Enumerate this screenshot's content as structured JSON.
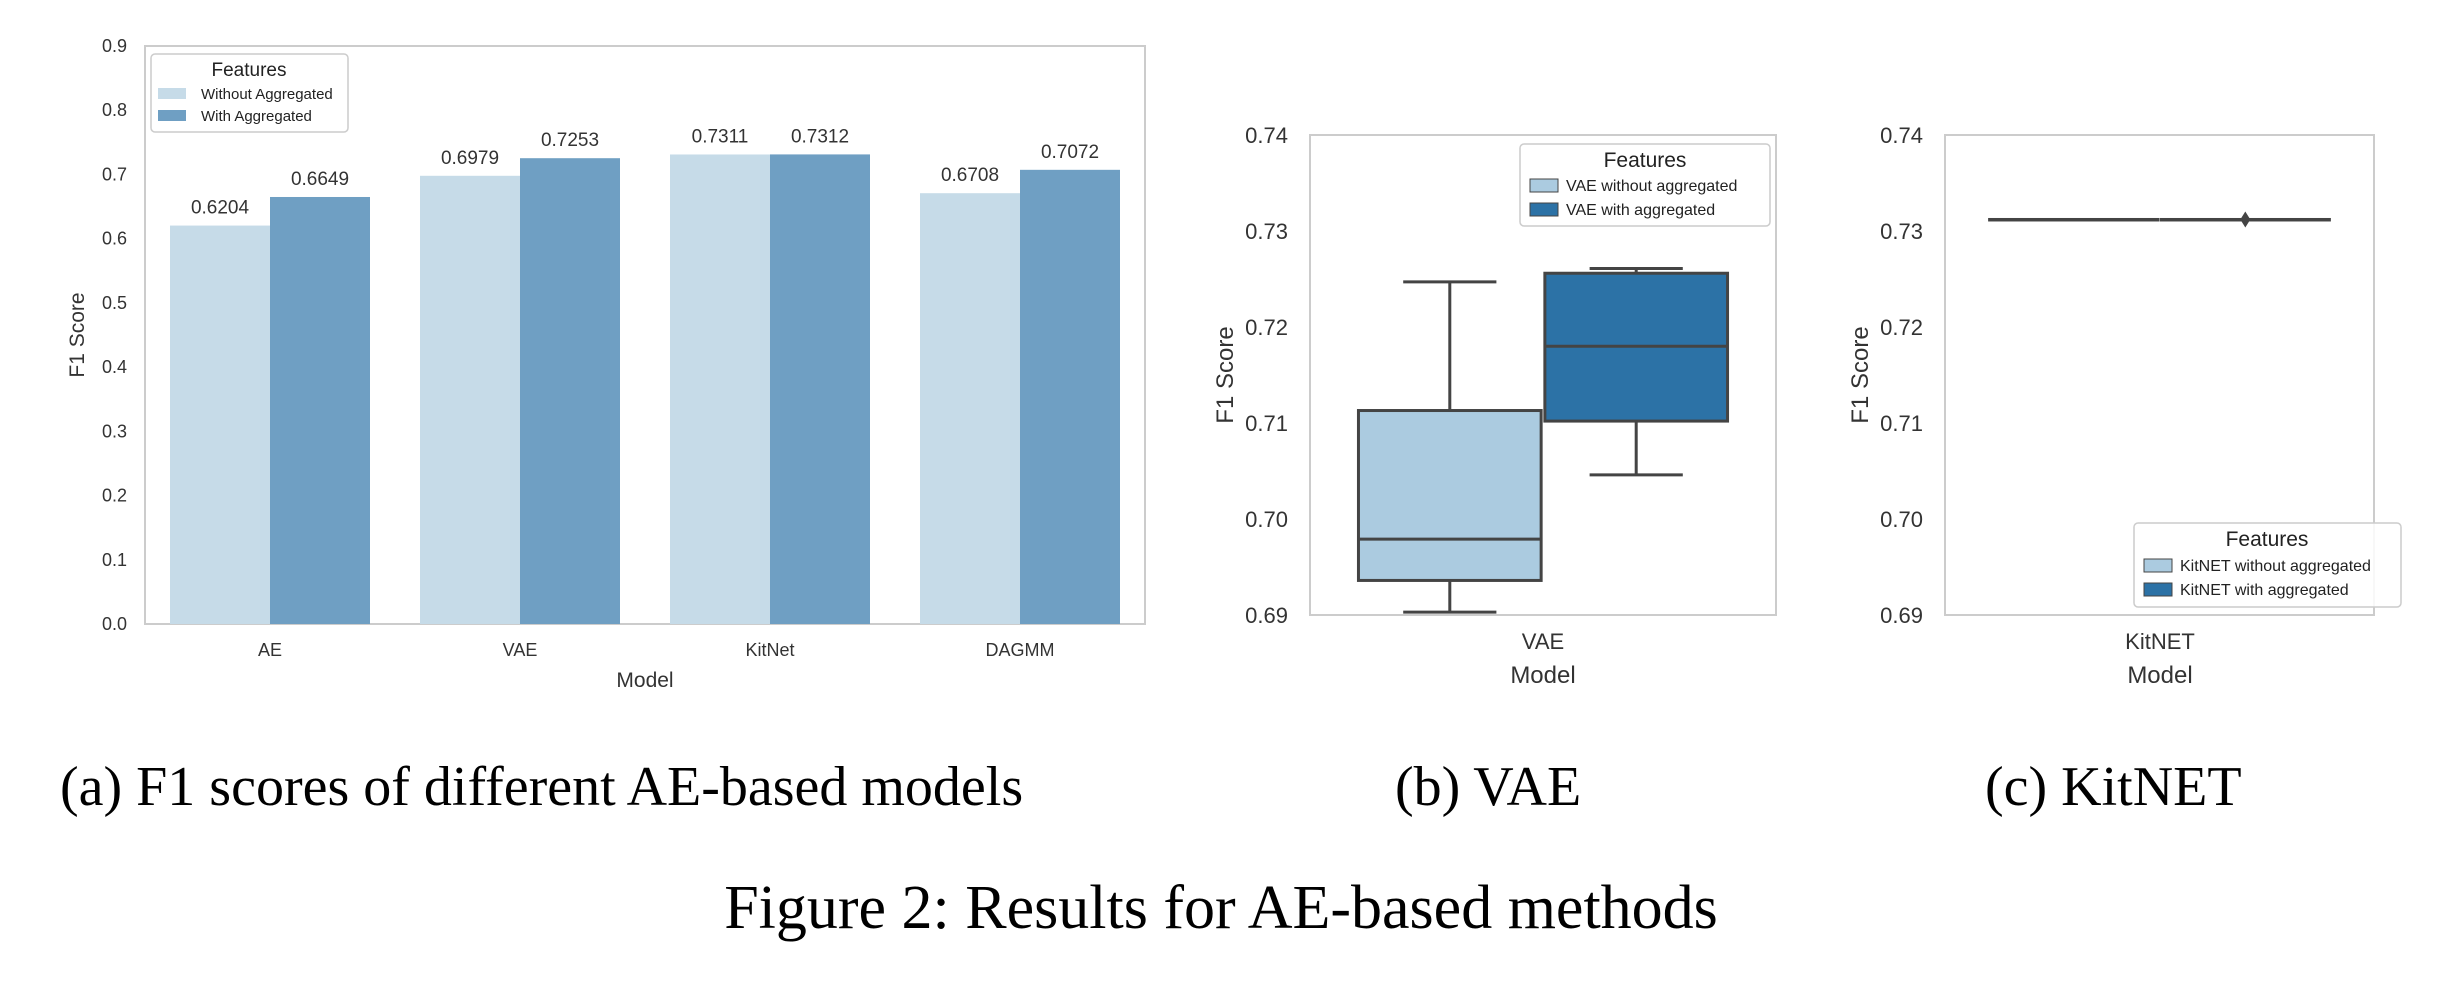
{
  "caption": "Figure 2: Results for AE-based methods",
  "colors": {
    "without_bar": "#c6dbe8",
    "with_bar": "#6f9fc3",
    "without_box": "#abcbe0",
    "with_box": "#2c72a6",
    "frame": "#cccccc",
    "line": "#444444"
  },
  "panels": {
    "a": {
      "subcaption": "(a) F1 scores of different AE-based models",
      "xlabel": "Model",
      "ylabel": "F1 Score",
      "legend_title": "Features"
    },
    "b": {
      "subcaption": "(b) VAE",
      "xlabel": "Model",
      "ylabel": "F1 Score",
      "legend_title": "Features"
    },
    "c": {
      "subcaption": "(c) KitNET",
      "xlabel": "Model",
      "ylabel": "F1 Score",
      "legend_title": "Features"
    }
  },
  "chart_data": [
    {
      "type": "bar",
      "categories": [
        "AE",
        "VAE",
        "KitNet",
        "DAGMM"
      ],
      "series": [
        {
          "name": "Without Aggregated",
          "values": [
            0.6204,
            0.6979,
            0.7311,
            0.6708
          ]
        },
        {
          "name": "With Aggregated",
          "values": [
            0.6649,
            0.7253,
            0.7312,
            0.7072
          ]
        }
      ],
      "data_labels": [
        [
          "0.6204",
          "0.6979",
          "0.7311",
          "0.6708"
        ],
        [
          "0.6649",
          "0.7253",
          "0.7312",
          "0.7072"
        ]
      ],
      "xlabel": "Model",
      "ylabel": "F1 Score",
      "ylim": [
        0,
        0.9
      ],
      "yticks": [
        "0.0",
        "0.1",
        "0.2",
        "0.3",
        "0.4",
        "0.5",
        "0.6",
        "0.7",
        "0.8",
        "0.9"
      ],
      "legend_title": "Features",
      "legend_position": "top-left",
      "grid": false
    },
    {
      "type": "box",
      "categories": [
        "VAE"
      ],
      "series": [
        {
          "name": "VAE without aggregated",
          "whisker_low": 0.6903,
          "q1": 0.6936,
          "median": 0.6979,
          "q3": 0.7113,
          "whisker_high": 0.7247
        },
        {
          "name": "VAE with aggregated",
          "whisker_low": 0.7046,
          "q1": 0.7102,
          "median": 0.718,
          "q3": 0.7256,
          "whisker_high": 0.7261
        }
      ],
      "xlabel": "Model",
      "ylabel": "F1 Score",
      "ylim": [
        0.69,
        0.74
      ],
      "yticks": [
        "0.69",
        "0.70",
        "0.71",
        "0.72",
        "0.73",
        "0.74"
      ],
      "legend_title": "Features",
      "legend_position": "top-right",
      "grid": false
    },
    {
      "type": "box",
      "categories": [
        "KitNET"
      ],
      "series": [
        {
          "name": "KitNET without aggregated",
          "whisker_low": 0.7312,
          "q1": 0.7312,
          "median": 0.7312,
          "q3": 0.7312,
          "whisker_high": 0.7312
        },
        {
          "name": "KitNET with aggregated",
          "whisker_low": 0.7312,
          "q1": 0.7312,
          "median": 0.7312,
          "q3": 0.7312,
          "whisker_high": 0.7312,
          "outliers": [
            0.7312
          ]
        }
      ],
      "xlabel": "Model",
      "ylabel": "F1 Score",
      "ylim": [
        0.69,
        0.74
      ],
      "yticks": [
        "0.69",
        "0.70",
        "0.71",
        "0.72",
        "0.73",
        "0.74"
      ],
      "legend_title": "Features",
      "legend_position": "bottom-right",
      "grid": false
    }
  ]
}
